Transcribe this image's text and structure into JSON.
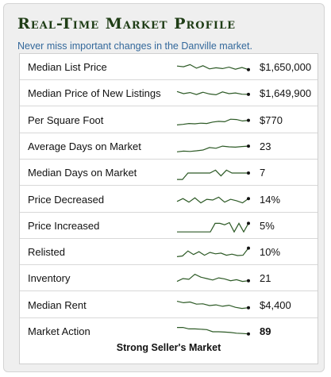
{
  "title": "Real-Time Market Profile",
  "subtitle": "Never miss important changes in the Danville market.",
  "rows": [
    {
      "label": "Median List Price",
      "value": "$1,650,000",
      "trend": [
        60,
        55,
        70,
        45,
        62,
        40,
        48,
        42,
        52,
        38,
        50,
        35
      ]
    },
    {
      "label": "Median Price of New Listings",
      "value": "$1,649,900",
      "trend": [
        65,
        50,
        58,
        44,
        60,
        48,
        42,
        62,
        50,
        55,
        46,
        45
      ]
    },
    {
      "label": "Per Square Foot",
      "value": "$770",
      "trend": [
        20,
        24,
        30,
        28,
        32,
        30,
        40,
        45,
        42,
        60,
        58,
        48,
        52
      ]
    },
    {
      "label": "Average Days on Market",
      "value": "23",
      "trend": [
        15,
        20,
        18,
        22,
        28,
        45,
        40,
        55,
        50,
        48,
        52,
        55
      ]
    },
    {
      "label": "Median Days on Market",
      "value": "7",
      "trend": [
        5,
        5,
        50,
        50,
        50,
        50,
        50,
        70,
        30,
        70,
        50,
        50,
        50,
        50
      ]
    },
    {
      "label": "Price Decreased",
      "value": "14%",
      "trend": [
        40,
        60,
        35,
        65,
        30,
        55,
        50,
        70,
        35,
        55,
        45,
        30,
        60
      ]
    },
    {
      "label": "Price Increased",
      "value": "5%",
      "trend": [
        10,
        10,
        10,
        10,
        10,
        10,
        10,
        10,
        70,
        70,
        60,
        75,
        10,
        70,
        10,
        70
      ]
    },
    {
      "label": "Relisted",
      "value": "10%",
      "trend": [
        20,
        25,
        60,
        35,
        55,
        30,
        50,
        40,
        45,
        30,
        38,
        28,
        30,
        80
      ]
    },
    {
      "label": "Inventory",
      "value": "21",
      "trend": [
        30,
        50,
        45,
        80,
        60,
        50,
        40,
        55,
        48,
        35,
        42,
        30,
        35
      ]
    },
    {
      "label": "Median Rent",
      "value": "$4,400",
      "trend": [
        80,
        70,
        75,
        60,
        62,
        50,
        55,
        45,
        52,
        38,
        30,
        35
      ]
    },
    {
      "label": "Market Action",
      "value": "89",
      "trend": [
        80,
        80,
        70,
        70,
        68,
        65,
        50,
        50,
        48,
        45,
        40,
        38,
        35
      ]
    }
  ],
  "footer": "Strong Seller's Market",
  "colors": {
    "title": "#1f3d16",
    "subtitle": "#33689b",
    "spark": "#2d5a26"
  }
}
